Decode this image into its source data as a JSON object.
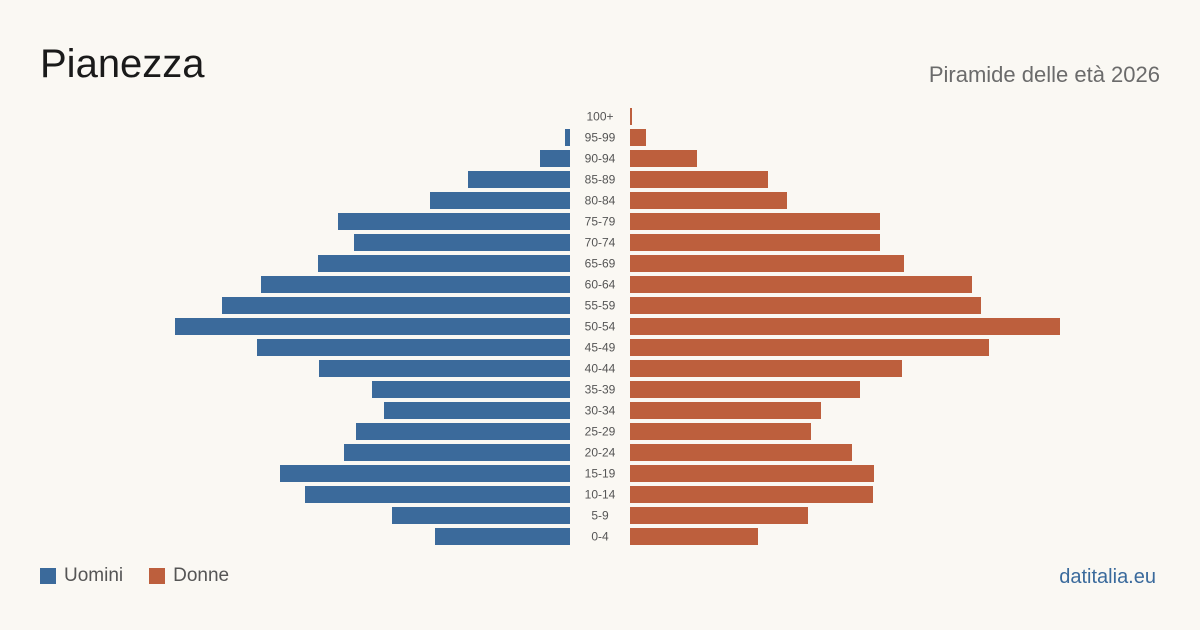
{
  "header": {
    "title": "Pianezza",
    "subtitle": "Piramide delle età 2026"
  },
  "legend": {
    "items": [
      {
        "label": "Uomini",
        "color": "#3b6a9b"
      },
      {
        "label": "Donne",
        "color": "#bd5f3d"
      }
    ]
  },
  "footer": {
    "brand": "datitalia.eu"
  },
  "chart_data": {
    "type": "bar",
    "orientation": "horizontal-pyramid",
    "categories": [
      "100+",
      "95-99",
      "90-94",
      "85-89",
      "80-84",
      "75-79",
      "70-74",
      "65-69",
      "60-64",
      "55-59",
      "50-54",
      "45-49",
      "40-44",
      "35-39",
      "30-34",
      "25-29",
      "20-24",
      "15-19",
      "10-14",
      "5-9",
      "0-4"
    ],
    "series": [
      {
        "name": "Uomini",
        "color": "#3b6a9b",
        "values": [
          0,
          5,
          30,
          102,
          140,
          232,
          216,
          252,
          309,
          348,
          395,
          313,
          251,
          198,
          186,
          214,
          226,
          290,
          265,
          178,
          135
        ]
      },
      {
        "name": "Donne",
        "color": "#bd5f3d",
        "values": [
          2,
          16,
          67,
          138,
          157,
          250,
          250,
          274,
          342,
          351,
          430,
          359,
          272,
          230,
          191,
          181,
          222,
          244,
          243,
          178,
          128
        ]
      }
    ],
    "grid": false,
    "legend_position": "bottom-left"
  }
}
